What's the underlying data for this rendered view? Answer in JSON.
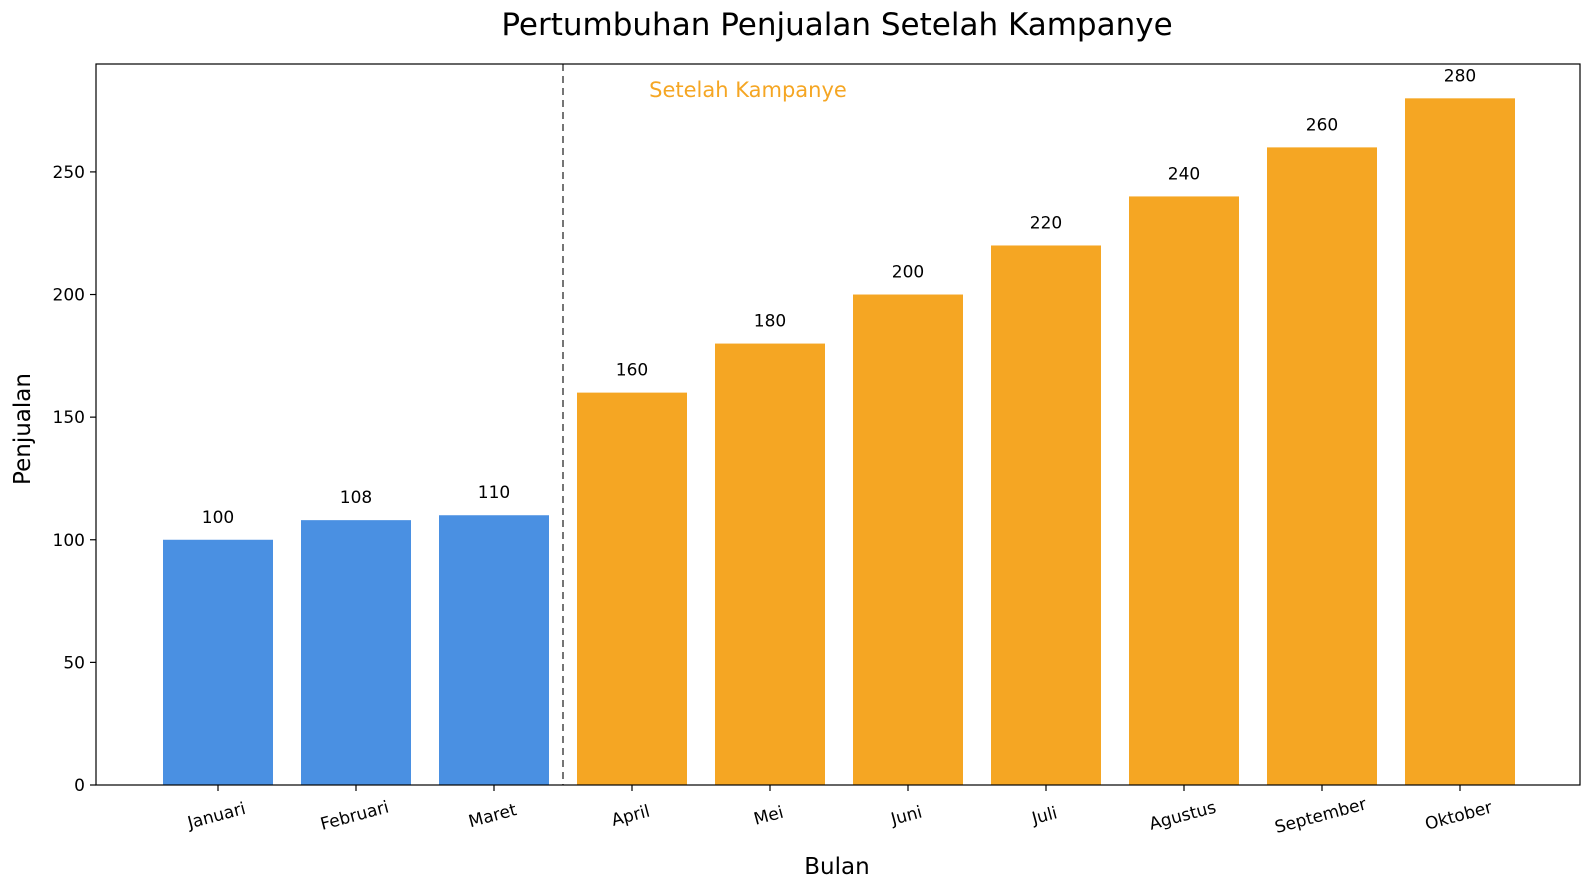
{
  "chart_data": {
    "type": "bar",
    "title": "Pertumbuhan Penjualan Setelah Kampanye",
    "xlabel": "Bulan",
    "ylabel": "Penjualan",
    "categories": [
      "Januari",
      "Februari",
      "Maret",
      "April",
      "Mei",
      "Juni",
      "Juli",
      "Agustus",
      "September",
      "Oktober"
    ],
    "values": [
      100,
      108,
      110,
      160,
      180,
      200,
      220,
      240,
      260,
      280
    ],
    "value_labels": [
      "100",
      "108",
      "110",
      "160",
      "180",
      "200",
      "220",
      "240",
      "260",
      "280"
    ],
    "before_color": "#4a90e2",
    "after_color": "#f5a623",
    "campaign_start_index": 3,
    "ylim": [
      0,
      294
    ],
    "yticks": [
      0,
      50,
      100,
      150,
      200,
      250
    ],
    "ytick_labels": [
      "0",
      "50",
      "100",
      "150",
      "200",
      "250"
    ],
    "grid": false,
    "annotation": {
      "text": "Setelah Kampanye",
      "color": "#f5a623"
    },
    "divider_line": {
      "style": "dashed",
      "color": "#666666",
      "position": "between Maret and April"
    }
  }
}
